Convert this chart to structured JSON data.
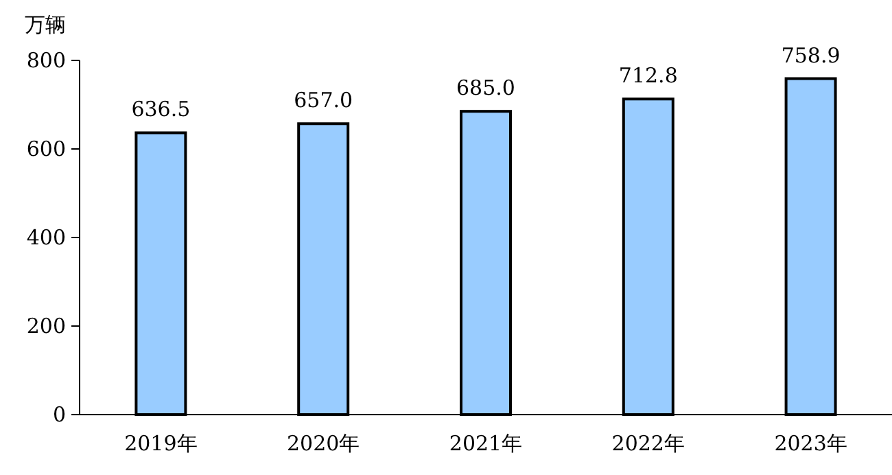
{
  "chart_data": {
    "type": "bar",
    "ylabel": "万辆",
    "categories": [
      "2019年",
      "2020年",
      "2021年",
      "2022年",
      "2023年"
    ],
    "values": [
      636.5,
      657.0,
      685.0,
      712.8,
      758.9
    ],
    "value_labels": [
      "636.5",
      "657.0",
      "685.0",
      "712.8",
      "758.9"
    ],
    "color": "#99ccff",
    "ylim": [
      0,
      800
    ],
    "yticks": [
      0,
      200,
      400,
      600,
      800
    ]
  }
}
